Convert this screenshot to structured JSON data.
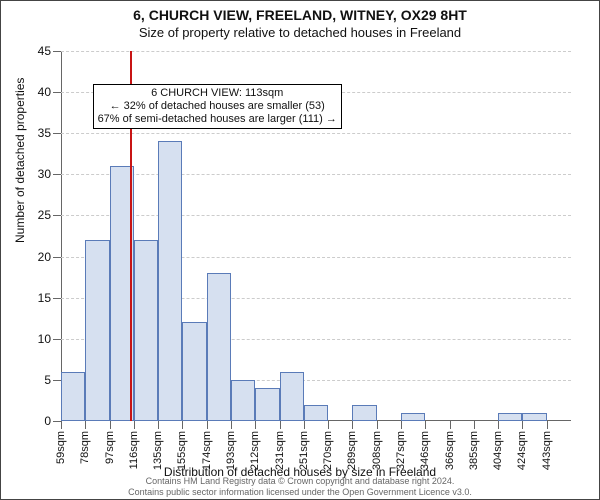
{
  "title_line1": "6, CHURCH VIEW, FREELAND, WITNEY, OX29 8HT",
  "title_line2": "Size of property relative to detached houses in Freeland",
  "ylabel": "Number of detached properties",
  "xlabel": "Distribution of detached houses by size in Freeland",
  "footer_line1": "Contains HM Land Registry data © Crown copyright and database right 2024.",
  "footer_line2": "Contains public sector information licensed under the Open Government Licence v3.0.",
  "chart": {
    "type": "histogram",
    "background_color": "#ffffff",
    "grid_color": "#cccccc",
    "axis_color": "#666666",
    "bar_fill": "#d6e0f0",
    "bar_stroke": "#5a7bb8",
    "marker_line_color": "#c81414",
    "text_color": "#111111",
    "title_fontsize": 14,
    "subtitle_fontsize": 13,
    "label_fontsize": 12,
    "tick_fontsize": 11,
    "ylim": [
      0,
      45
    ],
    "ytick_step": 5,
    "x_bin_width_sqm": 19,
    "x_start_sqm": 59,
    "x_bins": 21,
    "categories": [
      "59sqm",
      "78sqm",
      "97sqm",
      "116sqm",
      "135sqm",
      "155sqm",
      "174sqm",
      "193sqm",
      "212sqm",
      "231sqm",
      "251sqm",
      "270sqm",
      "289sqm",
      "308sqm",
      "327sqm",
      "346sqm",
      "366sqm",
      "385sqm",
      "404sqm",
      "424sqm",
      "443sqm"
    ],
    "values": [
      6,
      22,
      31,
      22,
      34,
      12,
      18,
      5,
      4,
      6,
      2,
      0,
      2,
      0,
      1,
      0,
      0,
      0,
      1,
      1,
      0
    ],
    "marker_value_sqm": 113,
    "annotation": {
      "line1": "6 CHURCH VIEW: 113sqm",
      "line2": "← 32% of detached houses are smaller (53)",
      "line3": "67% of semi-detached houses are larger (111) →",
      "box_background": "#ffffff",
      "box_border": "#000000",
      "fontsize": 11,
      "pos_bin_index": 1.3,
      "pos_y_value": 41
    }
  }
}
